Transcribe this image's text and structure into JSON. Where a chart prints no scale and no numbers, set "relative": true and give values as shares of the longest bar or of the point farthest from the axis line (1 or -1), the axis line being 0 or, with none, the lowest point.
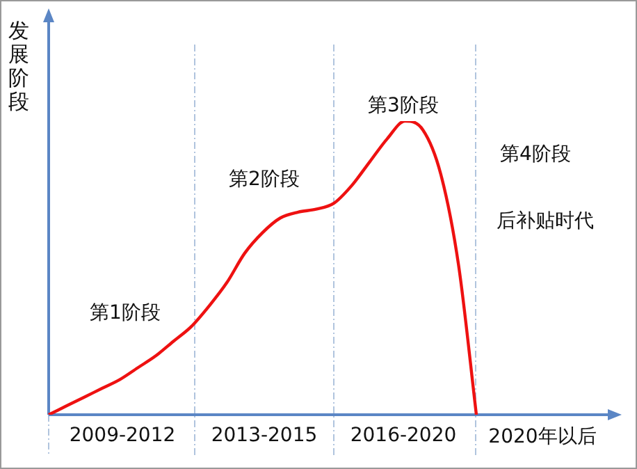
{
  "chart_data": {
    "type": "line",
    "relative": true,
    "ylabel": "发展阶段",
    "categories": [
      null,
      null,
      null,
      null,
      null,
      null,
      null,
      null,
      null,
      null,
      null,
      null,
      null,
      null,
      null,
      null,
      null,
      null,
      null,
      null,
      null,
      null,
      null,
      null,
      null,
      null,
      null,
      null,
      null,
      null,
      null,
      null,
      null
    ],
    "series": [
      {
        "color": "#ee1111",
        "values": [
          0,
          0.03,
          0.06,
          0.09,
          0.12,
          0.16,
          0.2,
          0.25,
          0.3,
          0.37,
          0.45,
          0.55,
          0.62,
          0.67,
          0.69,
          0.7,
          0.72,
          0.78,
          0.86,
          0.94,
          1,
          0.97,
          0.82,
          0.51,
          0,
          null,
          null,
          null,
          null,
          null,
          null,
          null,
          null
        ]
      }
    ],
    "annotations": [
      "第1阶段",
      "第2阶段",
      "第3阶段",
      "第4阶段",
      "后补贴时代",
      "2009-2012",
      "2013-2015",
      "2016-2020",
      "2020年以后"
    ],
    "legend": false,
    "marker": "none",
    "line_style": "solid"
  }
}
